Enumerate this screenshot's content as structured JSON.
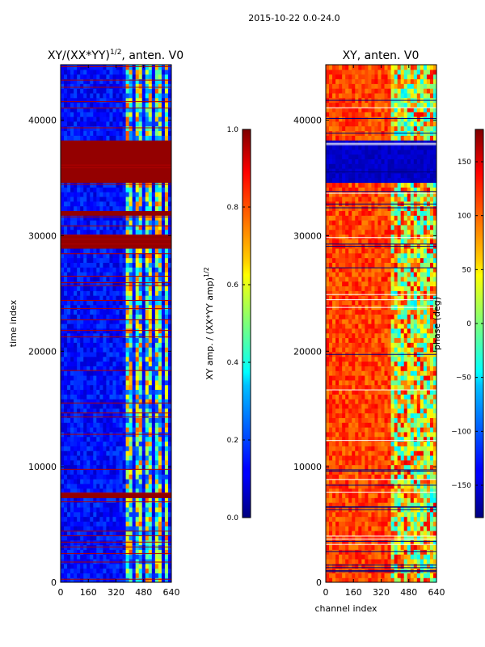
{
  "suptitle": "2015-10-22 0.0-24.0",
  "chart_data": [
    {
      "type": "heatmap",
      "title_main": "XY/(XX*YY)",
      "title_sup": "1/2",
      "title_tail": ", anten. V0",
      "xlabel": "",
      "ylabel": "time index",
      "xlim": [
        0,
        640
      ],
      "ylim": [
        0,
        44800
      ],
      "xticks": [
        0,
        160,
        320,
        480,
        640
      ],
      "xtick_labels": [
        "0",
        "160",
        "320",
        "480",
        "640"
      ],
      "yticks": [
        0,
        10000,
        20000,
        30000,
        40000
      ],
      "ytick_labels": [
        "0",
        "10000",
        "20000",
        "30000",
        "40000"
      ],
      "saturated_time_bands": [
        [
          34700,
          38200
        ],
        [
          28900,
          30300
        ],
        [
          7450,
          7850
        ],
        [
          31800,
          32300
        ]
      ],
      "colorbar": {
        "label_main": "XY amp. / (XX*YY amp)",
        "label_sup": "1/2",
        "range": [
          0.0,
          1.0
        ],
        "ticks": [
          0.0,
          0.2,
          0.4,
          0.6,
          0.8,
          1.0
        ],
        "tick_labels": [
          "0.0",
          "0.2",
          "0.4",
          "0.6",
          "0.8",
          "1.0"
        ],
        "colormap": "jet"
      }
    },
    {
      "type": "heatmap",
      "title": "XY, anten. V0",
      "xlabel": "channel index",
      "ylabel": "",
      "xlim": [
        0,
        640
      ],
      "ylim": [
        0,
        44800
      ],
      "xticks": [
        0,
        160,
        320,
        480,
        640
      ],
      "xtick_labels": [
        "0",
        "160",
        "320",
        "480",
        "640"
      ],
      "yticks": [
        0,
        10000,
        20000,
        30000,
        40000
      ],
      "ytick_labels": [
        "0",
        "10000",
        "20000",
        "30000",
        "40000"
      ],
      "low_phase_time_bands": [
        [
          34700,
          38200
        ]
      ],
      "colorbar": {
        "label": "phase (deg)",
        "range": [
          -180,
          180
        ],
        "ticks": [
          -150,
          -100,
          -50,
          0,
          50,
          100,
          150
        ],
        "tick_labels": [
          "−150",
          "−100",
          "−50",
          "0",
          "50",
          "100",
          "150"
        ],
        "colormap": "jet"
      }
    }
  ]
}
